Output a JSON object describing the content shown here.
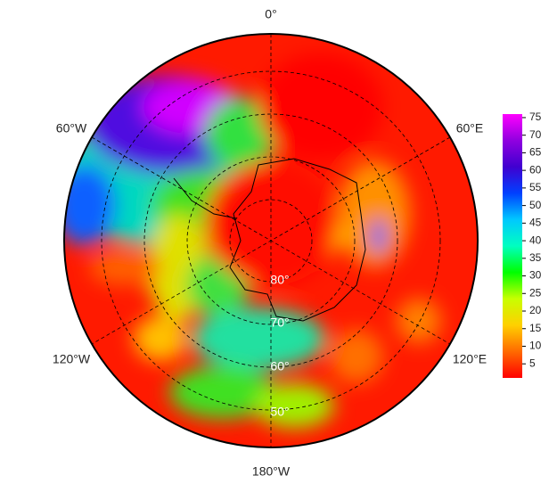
{
  "map": {
    "longitude_labels": [
      "0°",
      "60°E",
      "120°E",
      "180°W",
      "120°W",
      "60°W"
    ],
    "latitude_labels": [
      "80°",
      "70°",
      "60°",
      "50°"
    ]
  },
  "colorbar": {
    "range": [
      1,
      76
    ],
    "ticks": [
      5,
      10,
      15,
      20,
      25,
      30,
      35,
      40,
      45,
      50,
      55,
      60,
      65,
      70,
      75
    ],
    "colors": [
      "#ff0000",
      "#ff6a00",
      "#ffd000",
      "#c8ff00",
      "#00ff00",
      "#00ffc0",
      "#00c8ff",
      "#0040ff",
      "#4000d0",
      "#9000e0",
      "#ff00ff"
    ]
  }
}
